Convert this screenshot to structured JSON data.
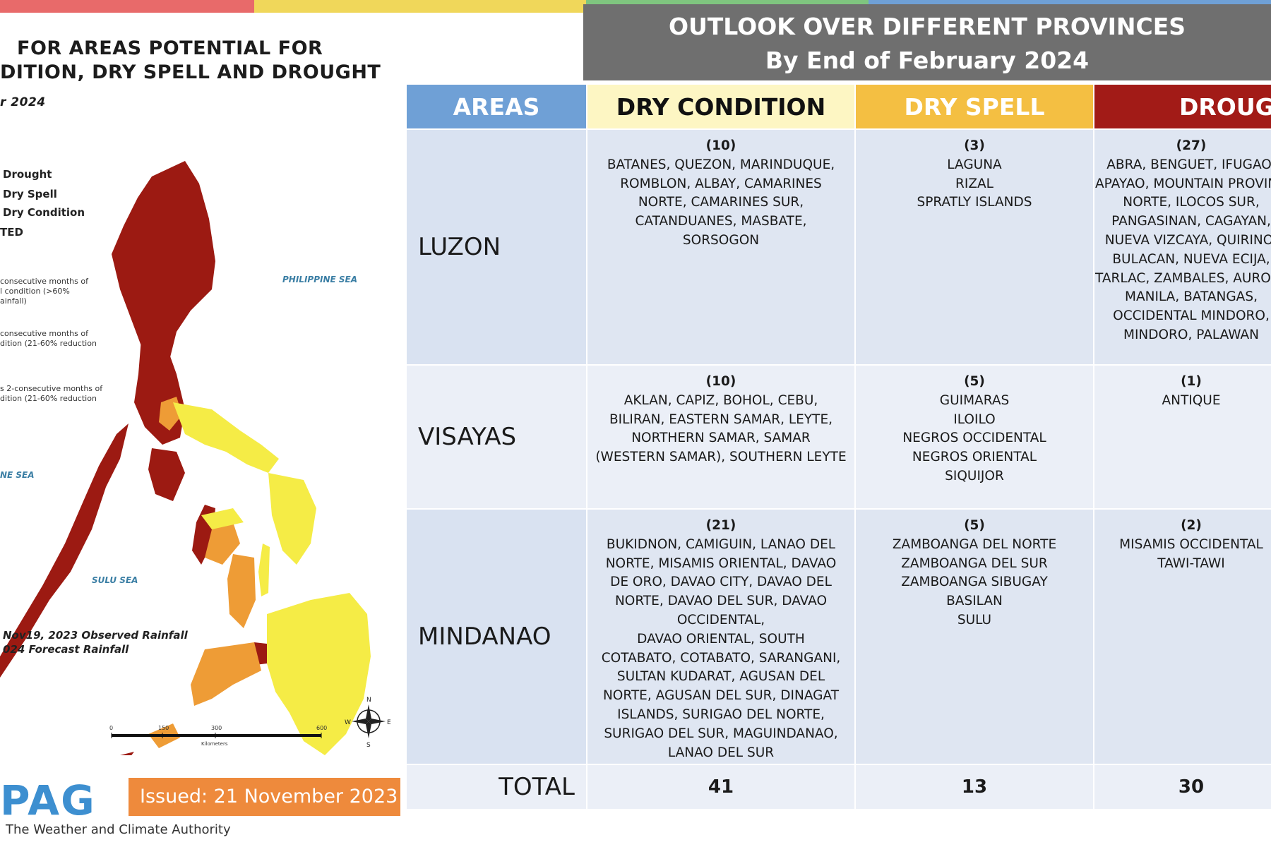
{
  "colors": {
    "areas_header": "#6fa0d6",
    "dry_condition_header": "#fdf6c3",
    "dry_spell_header": "#f4bf42",
    "drought_header": "#a21b17",
    "map_drought": "#9c1a12",
    "map_dry_spell": "#ee9c36",
    "map_dry_condition": "#f5ec46",
    "issued_badge": "#ee8a3c"
  },
  "map_panel": {
    "title_line1": "FOR AREAS POTENTIAL FOR",
    "title_line2": "DITION, DRY SPELL AND DROUGHT",
    "subtitle": "r 2024",
    "legend": [
      "Drought",
      "Dry Spell",
      "Dry Condition",
      "TED"
    ],
    "legend_notes": [
      [
        "consecutive months of",
        "l condition (>60%",
        "ainfall)"
      ],
      [
        "consecutive months of",
        "dition (21-60% reduction"
      ],
      [
        "s 2-consecutive months of",
        "dition (21-60% reduction"
      ]
    ],
    "seas": {
      "philippine": "PHILIPPINE SEA",
      "west": "NE SEA",
      "sulu": "SULU SEA"
    },
    "rain_notes": [
      "Nov19, 2023 Observed Rainfall",
      "024 Forecast Rainfall"
    ],
    "scale_labels": [
      "0",
      "150",
      "300",
      "600"
    ],
    "scale_unit": "Kilometers",
    "compass": [
      "N",
      "E",
      "S",
      "W"
    ],
    "logo_text": "PAG",
    "tagline": "The Weather and Climate Authority",
    "issued": "Issued: 21 November 2023"
  },
  "outlook": {
    "line1": "OUTLOOK OVER DIFFERENT PROVINCES",
    "line2": "By End of February 2024"
  },
  "table": {
    "headers": {
      "areas": "AREAS",
      "dry_condition": "DRY CONDITION",
      "dry_spell": "DRY SPELL",
      "drought": "DROUGHT"
    },
    "luzon": {
      "label": "LUZON",
      "dry_condition": {
        "count": "(10)",
        "lines": [
          "BATANES, QUEZON, MARINDUQUE,",
          "ROMBLON, ALBAY, CAMARINES",
          "NORTE, CAMARINES SUR,",
          "CATANDUANES, MASBATE,",
          "SORSOGON"
        ]
      },
      "dry_spell": {
        "count": "(3)",
        "lines": [
          "LAGUNA",
          "RIZAL",
          "SPRATLY ISLANDS"
        ]
      },
      "drought": {
        "count": "(27)",
        "lines": [
          "ABRA, BENGUET, IFUGAO,",
          "APAYAO, MOUNTAIN PROVINCE,",
          "NORTE, ILOCOS SUR,",
          "PANGASINAN, CAGAYAN,",
          "NUEVA VIZCAYA, QUIRINO,",
          "BULACAN, NUEVA ECIJA,",
          "TARLAC, ZAMBALES, AURORA,",
          "MANILA, BATANGAS,",
          "OCCIDENTAL MINDORO,",
          "MINDORO, PALAWAN"
        ]
      }
    },
    "visayas": {
      "label": "VISAYAS",
      "dry_condition": {
        "count": "(10)",
        "lines": [
          "AKLAN, CAPIZ, BOHOL, CEBU,",
          "BILIRAN, EASTERN SAMAR, LEYTE,",
          "NORTHERN SAMAR, SAMAR",
          "(WESTERN SAMAR), SOUTHERN LEYTE"
        ]
      },
      "dry_spell": {
        "count": "(5)",
        "lines": [
          "GUIMARAS",
          "ILOILO",
          "NEGROS OCCIDENTAL",
          "NEGROS ORIENTAL",
          "SIQUIJOR"
        ]
      },
      "drought": {
        "count": "(1)",
        "lines": [
          "ANTIQUE"
        ]
      }
    },
    "mindanao": {
      "label": "MINDANAO",
      "dry_condition": {
        "count": "(21)",
        "lines": [
          "BUKIDNON, CAMIGUIN, LANAO DEL",
          "NORTE, MISAMIS ORIENTAL, DAVAO",
          "DE ORO, DAVAO CITY, DAVAO DEL",
          "NORTE, DAVAO DEL SUR, DAVAO",
          "OCCIDENTAL,",
          "DAVAO ORIENTAL, SOUTH",
          "COTABATO, COTABATO, SARANGANI,",
          "SULTAN KUDARAT, AGUSAN DEL",
          "NORTE, AGUSAN DEL SUR, DINAGAT",
          "ISLANDS, SURIGAO DEL NORTE,",
          "SURIGAO DEL SUR, MAGUINDANAO,",
          "LANAO DEL SUR"
        ]
      },
      "dry_spell": {
        "count": "(5)",
        "lines": [
          "ZAMBOANGA DEL NORTE",
          "ZAMBOANGA DEL SUR",
          "ZAMBOANGA SIBUGAY",
          "BASILAN",
          "SULU"
        ]
      },
      "drought": {
        "count": "(2)",
        "lines": [
          "MISAMIS OCCIDENTAL",
          "TAWI-TAWI"
        ]
      }
    },
    "total": {
      "label": "TOTAL",
      "dry_condition": "41",
      "dry_spell": "13",
      "drought": "30"
    }
  }
}
